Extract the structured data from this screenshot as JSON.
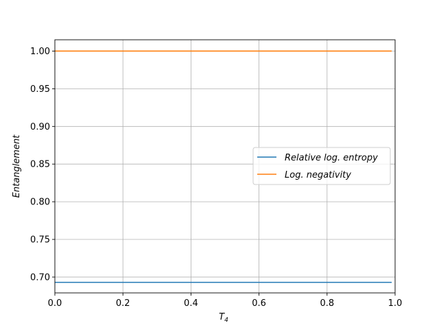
{
  "chart_data": {
    "type": "line",
    "xlabel": "T",
    "xlabel_sub": "4",
    "ylabel": "Entanglement",
    "xlim": [
      0.0,
      1.0
    ],
    "ylim": [
      0.679,
      1.015
    ],
    "xticks": [
      "0.0",
      "0.2",
      "0.4",
      "0.6",
      "0.8",
      "1.0"
    ],
    "xtick_values": [
      0.0,
      0.2,
      0.4,
      0.6,
      0.8,
      1.0
    ],
    "yticks": [
      "0.70",
      "0.75",
      "0.80",
      "0.85",
      "0.90",
      "0.95",
      "1.00"
    ],
    "ytick_values": [
      0.7,
      0.75,
      0.8,
      0.85,
      0.9,
      0.95,
      1.0
    ],
    "grid": true,
    "legend_position": "center-right",
    "series": [
      {
        "name": "Relative log. entropy",
        "color": "#1f77b4",
        "x": [
          0.0,
          0.99
        ],
        "y": [
          0.693,
          0.693
        ]
      },
      {
        "name": "Log. negativity",
        "color": "#ff7f0e",
        "x": [
          0.0,
          0.99
        ],
        "y": [
          1.0,
          1.0
        ]
      }
    ]
  }
}
